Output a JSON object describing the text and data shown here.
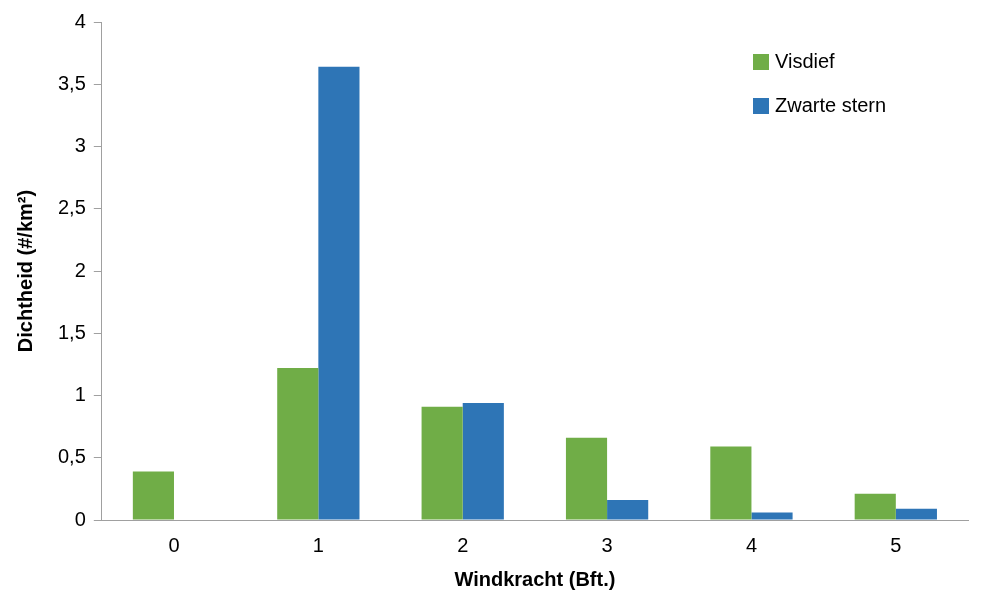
{
  "chart_data": {
    "type": "bar",
    "xlabel": "Windkracht (Bft.)",
    "ylabel": "Dichtheid (#/km²)",
    "categories": [
      "0",
      "1",
      "2",
      "3",
      "4",
      "5"
    ],
    "series": [
      {
        "name": "Visdief",
        "color": "#70ad47",
        "values": [
          0.39,
          1.22,
          0.91,
          0.66,
          0.59,
          0.21
        ]
      },
      {
        "name": "Zwarte stern",
        "color": "#2e75b6",
        "values": [
          0,
          3.64,
          0.94,
          0.16,
          0.06,
          0.09
        ]
      }
    ],
    "ylim": [
      0,
      4
    ],
    "yticks": [
      0,
      {
        "value": 0.5,
        "label": "0,5"
      },
      1,
      {
        "value": 1.5,
        "label": "1,5"
      },
      2,
      {
        "value": 2.5,
        "label": "2,5"
      },
      3,
      {
        "value": 3.5,
        "label": "3,5"
      },
      4
    ],
    "grid": false,
    "legend": "top right"
  }
}
